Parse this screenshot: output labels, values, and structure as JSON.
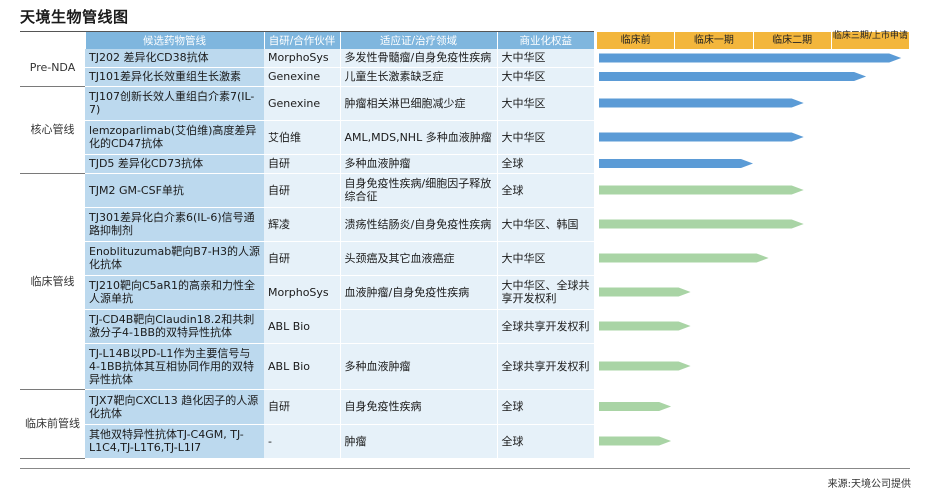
{
  "title": "天境生物管线图",
  "headers": {
    "drug": "候选药物管线",
    "partner": "自研/合作伙伴",
    "indication": "适应证/治疗领域",
    "rights": "商业化权益"
  },
  "phases": [
    "临床前",
    "临床一期",
    "临床二期",
    "临床三期/上市申请"
  ],
  "stages": {
    "pre_nda": "Pre-NDA",
    "core": "核心管线",
    "clinical": "临床管线",
    "preclinical": "临床前管线"
  },
  "rows": [
    {
      "drug": "TJ202 差异化CD38抗体",
      "partner": "MorphoSys",
      "indication": "多发性骨髓瘤/自身免疫性疾病",
      "rights": "大中华区",
      "progress": 3.9,
      "color": "#5b9bd6"
    },
    {
      "drug": "TJ101差异化长效重组生长激素",
      "partner": "Genexine",
      "indication": "儿童生长激素缺乏症",
      "rights": "大中华区",
      "progress": 3.45,
      "color": "#5b9bd6"
    },
    {
      "drug": "TJ107创新长效人重组白介素7(IL-7)",
      "partner": "Genexine",
      "indication": "肿瘤相关淋巴细胞减少症",
      "rights": "大中华区",
      "progress": 2.65,
      "color": "#5b9bd6"
    },
    {
      "drug": "lemzoparlimab(艾伯维)高度差异化的CD47抗体",
      "partner": "艾伯维",
      "indication": "AML,MDS,NHL 多种血液肿瘤",
      "rights": "大中华区",
      "progress": 2.65,
      "color": "#5b9bd6"
    },
    {
      "drug": "TJD5 差异化CD73抗体",
      "partner": "自研",
      "indication": "多种血液肿瘤",
      "rights": "全球",
      "progress": 2.0,
      "color": "#5b9bd6"
    },
    {
      "drug": "TJM2 GM-CSF单抗",
      "partner": "自研",
      "indication": "自身免疫性疾病/细胞因子释放综合征",
      "rights": "全球",
      "progress": 2.65,
      "color": "#a9d4a5"
    },
    {
      "drug": "TJ301差异化白介素6(IL-6)信号通路抑制剂",
      "partner": "辉凌",
      "indication": "溃疡性结肠炎/自身免疫性疾病",
      "rights": "大中华区、韩国",
      "progress": 2.65,
      "color": "#a9d4a5"
    },
    {
      "drug": "Enoblituzumab靶向B7-H3的人源化抗体",
      "partner": "自研",
      "indication": "头颈癌及其它血液癌症",
      "rights": "大中华区",
      "progress": 2.2,
      "color": "#a9d4a5"
    },
    {
      "drug": "TJ210靶向C5aR1的高亲和力性全人源单抗",
      "partner": "MorphoSys",
      "indication": "血液肿瘤/自身免疫性疾病",
      "rights": "大中华区、全球共享开发权利",
      "progress": 1.2,
      "color": "#a9d4a5"
    },
    {
      "drug": "TJ-CD4B靶向Claudin18.2和共刺激分子4-1BB的双特异性抗体",
      "partner": "ABL Bio",
      "indication": "",
      "rights": "全球共享开发权利",
      "progress": 1.2,
      "color": "#a9d4a5"
    },
    {
      "drug": "TJ-L14B以PD-L1作为主要信号与4-1BB抗体其互相协同作用的双特异性抗体",
      "partner": "ABL Bio",
      "indication": "多种血液肿瘤",
      "rights": "全球共享开发权利",
      "progress": 1.2,
      "color": "#a9d4a5"
    },
    {
      "drug": "TJX7靶向CXCL13 趋化因子的人源化抗体",
      "partner": "自研",
      "indication": "自身免疫性疾病",
      "rights": "全球",
      "progress": 0.95,
      "color": "#a9d4a5"
    },
    {
      "drug": "其他双特异性抗体TJ-C4GM, TJ-L1C4,TJ-L1T6,TJ-L1I7",
      "partner": "-",
      "indication": "肿瘤",
      "rights": "全球",
      "progress": 0.95,
      "color": "#a9d4a5"
    }
  ],
  "source": "来源:天境公司提供"
}
